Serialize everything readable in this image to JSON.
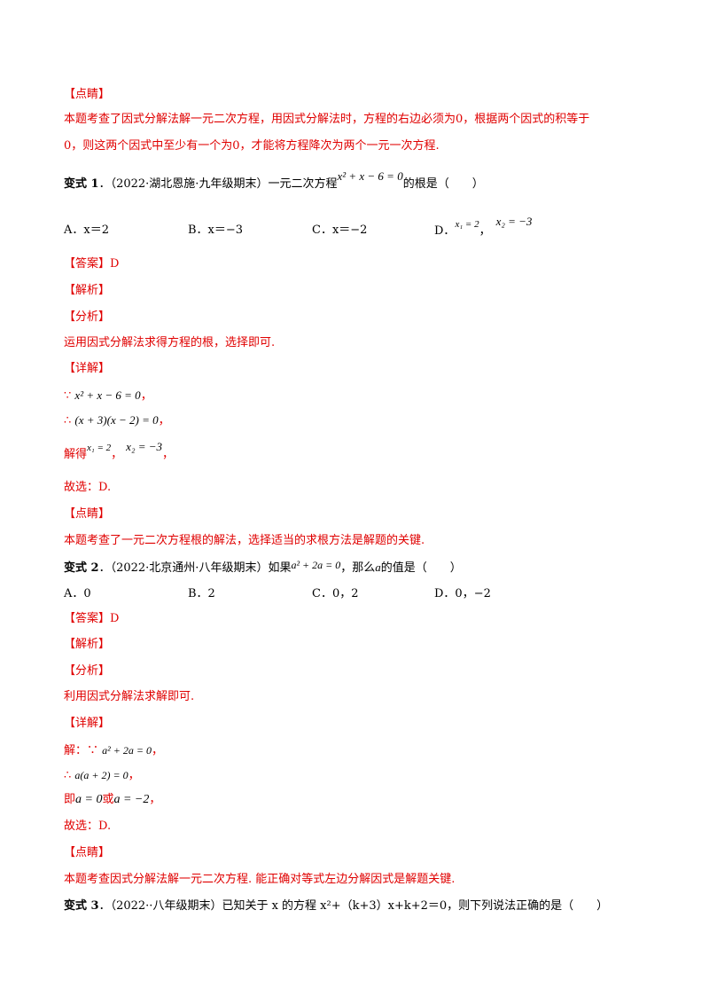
{
  "s0": {
    "dianjing": "【点睛】",
    "line1": "本题考查了因式分解法解一元二次方程，用因式分解法时，方程的右边必须为0，根据两个因式的积等于",
    "line2": "0，则这两个因式中至少有一个为0，才能将方程降次为两个一元一次方程."
  },
  "v1": {
    "label": "变式 1",
    "dot": "．",
    "source": "（2022·湖北恩施·九年级期末）一元二次方程",
    "eq": "x² + x − 6 = 0",
    "tail": "的根是（　　）",
    "opts": [
      "A．x＝2",
      "B．x＝−3",
      "C．x＝−2"
    ],
    "opt_d_label": "D．",
    "opt_d_x1": "x₁ = 2",
    "opt_d_x2": "x₂ = −3",
    "opt_d_sep": "，",
    "answer": "【答案】D",
    "jiexi": "【解析】",
    "fenxi": "【分析】",
    "fenxi_text": "运用因式分解法求得方程的根，选择即可.",
    "xiangjie": "【详解】",
    "step1_sym": "∵",
    "step1": "x² + x − 6 = 0",
    "step2_sym": "∴",
    "step2": "(x + 3)(x − 2) = 0",
    "comma": "，",
    "step3_pre": "解得",
    "step3_x1": "x₁ = 2",
    "step3_x2": "x₂ = −3",
    "guxuan": "故选：D.",
    "dianjing": "【点睛】",
    "dianjing_text": "本题考查了一元二次方程根的解法，选择适当的求根方法是解题的关键."
  },
  "v2": {
    "label": "变式 2",
    "dot": "．",
    "source": "（2022·北京通州·八年级期末）如果",
    "eq": "a² + 2a = 0",
    "mid": "，那么",
    "var": "a",
    "tail": "的值是（　　）",
    "opts": [
      "A．0",
      "B．2",
      "C．0，2",
      "D．0，−2"
    ],
    "answer": "【答案】D",
    "jiexi": "【解析】",
    "fenxi": "【分析】",
    "fenxi_text": "利用因式分解法求解即可.",
    "xiangjie": "【详解】",
    "step1_pre": "解：",
    "step1_sym": "∵",
    "step1": "a² + 2a = 0",
    "step2_sym": "∴",
    "step2": "a(a + 2) = 0",
    "comma": "，",
    "step3_pre": "即",
    "step3_a": "a = 0",
    "step3_or": "或",
    "step3_b": "a = −2",
    "guxuan": "故选：D.",
    "dianjing": "【点睛】",
    "dianjing_text": "本题考查因式分解法解一元二次方程. 能正确对等式左边分解因式是解题关键."
  },
  "v3": {
    "label": "变式 3",
    "dot": "．",
    "text": "（2022··八年级期末）已知关于 x 的方程 x²+（k+3）x+k+2＝0，则下列说法正确的是（　　）"
  }
}
